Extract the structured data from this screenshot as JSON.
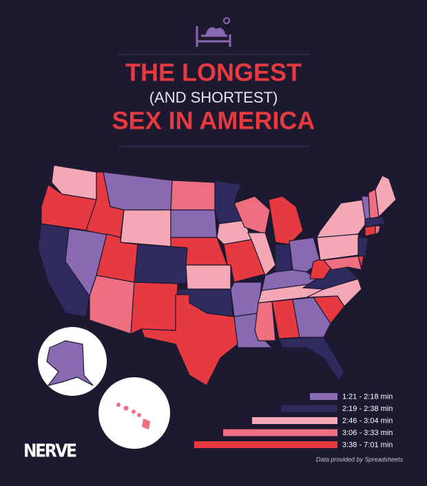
{
  "header": {
    "title_line1": "THE LONGEST",
    "title_line2": "(AND SHORTEST)",
    "title_line3": "SEX IN AMERICA"
  },
  "legend": {
    "items": [
      {
        "label": "1:21 - 2:18 min",
        "color": "#8a69b3"
      },
      {
        "label": "2:19 - 2:38 min",
        "color": "#2f2b5f"
      },
      {
        "label": "2:46 - 3:04 min",
        "color": "#f4a7b4"
      },
      {
        "label": "3:06 - 3:33 min",
        "color": "#ee6f80"
      },
      {
        "label": "3:38 - 7:01 min",
        "color": "#e63a40"
      }
    ]
  },
  "footer": {
    "logo": "NERVE",
    "credit": "Data provided by Spreadsheets"
  }
}
